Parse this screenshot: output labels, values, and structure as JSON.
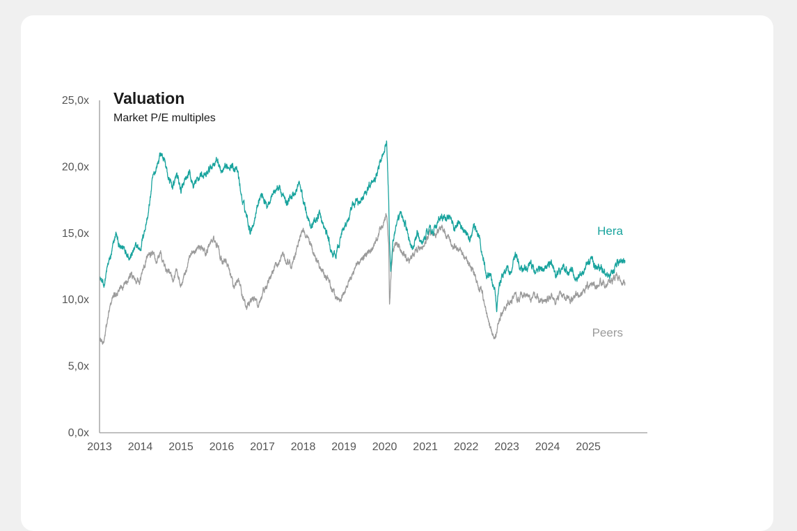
{
  "chart_data": {
    "type": "line",
    "title": "Valuation",
    "subtitle": "Market P/E multiples",
    "xlabel": "",
    "ylabel": "",
    "xlim": [
      2013,
      2026.45
    ],
    "ylim": [
      0,
      25
    ],
    "y_ticks": [
      "0,0x",
      "5,0x",
      "10,0x",
      "15,0x",
      "20,0x",
      "25,0x"
    ],
    "x_ticks": [
      "2013",
      "2014",
      "2015",
      "2016",
      "2017",
      "2018",
      "2019",
      "2020",
      "2021",
      "2022",
      "2023",
      "2024",
      "2025"
    ],
    "series": [
      {
        "name": "Hera",
        "color": "#18a39d",
        "x": [
          2013.0,
          2013.1,
          2013.2,
          2013.3,
          2013.4,
          2013.5,
          2013.6,
          2013.75,
          2013.9,
          2014.0,
          2014.1,
          2014.2,
          2014.3,
          2014.4,
          2014.5,
          2014.6,
          2014.7,
          2014.8,
          2014.9,
          2015.0,
          2015.1,
          2015.2,
          2015.3,
          2015.4,
          2015.5,
          2015.6,
          2015.7,
          2015.8,
          2015.9,
          2016.0,
          2016.1,
          2016.2,
          2016.3,
          2016.4,
          2016.5,
          2016.6,
          2016.7,
          2016.8,
          2016.9,
          2017.0,
          2017.1,
          2017.2,
          2017.3,
          2017.4,
          2017.5,
          2017.6,
          2017.7,
          2017.8,
          2017.9,
          2018.0,
          2018.1,
          2018.2,
          2018.3,
          2018.4,
          2018.5,
          2018.6,
          2018.7,
          2018.8,
          2018.9,
          2019.0,
          2019.1,
          2019.2,
          2019.3,
          2019.4,
          2019.5,
          2019.6,
          2019.7,
          2019.8,
          2019.9,
          2020.0,
          2020.05,
          2020.1,
          2020.12,
          2020.15,
          2020.2,
          2020.3,
          2020.4,
          2020.5,
          2020.6,
          2020.7,
          2020.8,
          2020.9,
          2021.0,
          2021.1,
          2021.2,
          2021.3,
          2021.4,
          2021.5,
          2021.6,
          2021.7,
          2021.8,
          2021.9,
          2022.0,
          2022.1,
          2022.2,
          2022.3,
          2022.4,
          2022.5,
          2022.6,
          2022.7,
          2022.75,
          2022.8,
          2022.9,
          2023.0,
          2023.1,
          2023.2,
          2023.3,
          2023.4,
          2023.5,
          2023.6,
          2023.7,
          2023.8,
          2023.9,
          2024.0,
          2024.1,
          2024.2,
          2024.3,
          2024.4,
          2024.5,
          2024.6,
          2024.7,
          2024.8,
          2024.9,
          2025.0,
          2025.1,
          2025.2,
          2025.3,
          2025.4,
          2025.5,
          2025.6,
          2025.7,
          2025.8,
          2025.9
        ],
        "values": [
          11.8,
          11.0,
          12.5,
          13.5,
          15.0,
          13.8,
          14.0,
          13.2,
          14.0,
          13.8,
          15.2,
          16.5,
          19.0,
          20.0,
          21.0,
          20.5,
          19.0,
          18.5,
          19.5,
          18.2,
          18.8,
          19.5,
          18.5,
          19.0,
          19.5,
          19.2,
          19.8,
          20.3,
          20.5,
          19.5,
          19.8,
          20.2,
          20.0,
          19.5,
          17.5,
          16.5,
          15.2,
          16.0,
          17.5,
          18.0,
          17.0,
          17.8,
          18.2,
          18.5,
          17.8,
          17.2,
          17.8,
          18.0,
          18.8,
          17.5,
          16.5,
          15.5,
          16.0,
          16.5,
          15.5,
          14.8,
          13.5,
          13.2,
          14.5,
          15.5,
          16.0,
          16.8,
          17.5,
          17.2,
          18.0,
          18.5,
          19.0,
          19.5,
          20.5,
          21.5,
          22.0,
          17.5,
          14.2,
          12.0,
          14.5,
          15.5,
          16.5,
          15.8,
          14.5,
          13.8,
          15.0,
          14.2,
          14.8,
          15.5,
          15.2,
          15.8,
          16.2,
          16.0,
          16.5,
          15.2,
          15.8,
          15.5,
          15.0,
          14.5,
          15.5,
          14.8,
          13.5,
          11.8,
          12.0,
          10.8,
          9.5,
          11.0,
          11.8,
          12.5,
          12.0,
          13.5,
          12.8,
          12.5,
          12.2,
          12.8,
          12.0,
          12.5,
          12.2,
          12.5,
          12.8,
          11.8,
          12.2,
          12.5,
          12.0,
          12.3,
          11.5,
          12.0,
          12.2,
          12.8,
          13.2,
          12.2,
          12.5,
          12.0,
          11.8,
          12.3,
          12.8,
          13.0,
          12.8
        ],
        "noise": 0.35
      },
      {
        "name": "Peers",
        "color": "#9b9b9b",
        "x": [
          2013.0,
          2013.1,
          2013.2,
          2013.3,
          2013.4,
          2013.5,
          2013.6,
          2013.75,
          2013.9,
          2014.0,
          2014.1,
          2014.2,
          2014.3,
          2014.4,
          2014.5,
          2014.6,
          2014.7,
          2014.8,
          2014.9,
          2015.0,
          2015.1,
          2015.2,
          2015.3,
          2015.4,
          2015.5,
          2015.6,
          2015.7,
          2015.8,
          2015.9,
          2016.0,
          2016.1,
          2016.2,
          2016.3,
          2016.4,
          2016.5,
          2016.6,
          2016.7,
          2016.8,
          2016.9,
          2017.0,
          2017.1,
          2017.2,
          2017.3,
          2017.4,
          2017.5,
          2017.6,
          2017.7,
          2017.8,
          2017.9,
          2018.0,
          2018.1,
          2018.2,
          2018.3,
          2018.4,
          2018.5,
          2018.6,
          2018.7,
          2018.8,
          2018.9,
          2019.0,
          2019.1,
          2019.2,
          2019.3,
          2019.4,
          2019.5,
          2019.6,
          2019.7,
          2019.8,
          2019.9,
          2020.0,
          2020.05,
          2020.1,
          2020.12,
          2020.15,
          2020.2,
          2020.3,
          2020.4,
          2020.5,
          2020.6,
          2020.7,
          2020.8,
          2020.9,
          2021.0,
          2021.1,
          2021.2,
          2021.3,
          2021.4,
          2021.5,
          2021.6,
          2021.7,
          2021.8,
          2021.9,
          2022.0,
          2022.1,
          2022.2,
          2022.3,
          2022.4,
          2022.5,
          2022.6,
          2022.7,
          2022.75,
          2022.8,
          2022.9,
          2023.0,
          2023.1,
          2023.2,
          2023.3,
          2023.4,
          2023.5,
          2023.6,
          2023.7,
          2023.8,
          2023.9,
          2024.0,
          2024.1,
          2024.2,
          2024.3,
          2024.4,
          2024.5,
          2024.6,
          2024.7,
          2024.8,
          2024.9,
          2025.0,
          2025.1,
          2025.2,
          2025.3,
          2025.4,
          2025.5,
          2025.6,
          2025.7,
          2025.8,
          2025.9
        ],
        "values": [
          7.0,
          6.8,
          8.5,
          10.0,
          10.5,
          10.8,
          11.2,
          12.0,
          11.5,
          11.5,
          12.5,
          13.5,
          13.5,
          12.8,
          13.5,
          12.5,
          12.0,
          11.5,
          12.2,
          11.0,
          12.0,
          13.0,
          13.5,
          13.8,
          14.0,
          13.5,
          14.2,
          14.5,
          14.0,
          12.8,
          13.0,
          12.0,
          11.0,
          11.5,
          10.5,
          9.5,
          9.8,
          10.2,
          9.5,
          10.5,
          11.0,
          11.8,
          12.5,
          12.8,
          13.5,
          13.0,
          12.5,
          13.2,
          14.5,
          15.2,
          14.8,
          14.0,
          13.2,
          12.5,
          12.0,
          11.5,
          11.0,
          10.2,
          10.0,
          10.5,
          11.0,
          11.8,
          12.5,
          12.8,
          13.2,
          13.5,
          13.8,
          14.5,
          15.5,
          16.0,
          16.5,
          14.0,
          9.5,
          11.5,
          13.8,
          14.2,
          13.8,
          13.2,
          13.0,
          13.5,
          13.8,
          14.0,
          14.2,
          15.0,
          14.8,
          15.2,
          15.5,
          14.8,
          14.5,
          14.0,
          13.8,
          13.5,
          13.0,
          12.5,
          12.0,
          11.0,
          10.5,
          9.0,
          7.8,
          7.2,
          7.5,
          8.5,
          9.0,
          9.5,
          10.0,
          10.2,
          10.0,
          10.5,
          10.2,
          10.0,
          10.5,
          9.8,
          9.8,
          10.0,
          10.2,
          10.0,
          10.3,
          10.0,
          10.2,
          10.0,
          10.5,
          10.5,
          10.8,
          11.0,
          11.2,
          11.0,
          11.5,
          11.2,
          11.3,
          11.5,
          11.8,
          11.5,
          11.3
        ],
        "noise": 0.3
      }
    ]
  }
}
